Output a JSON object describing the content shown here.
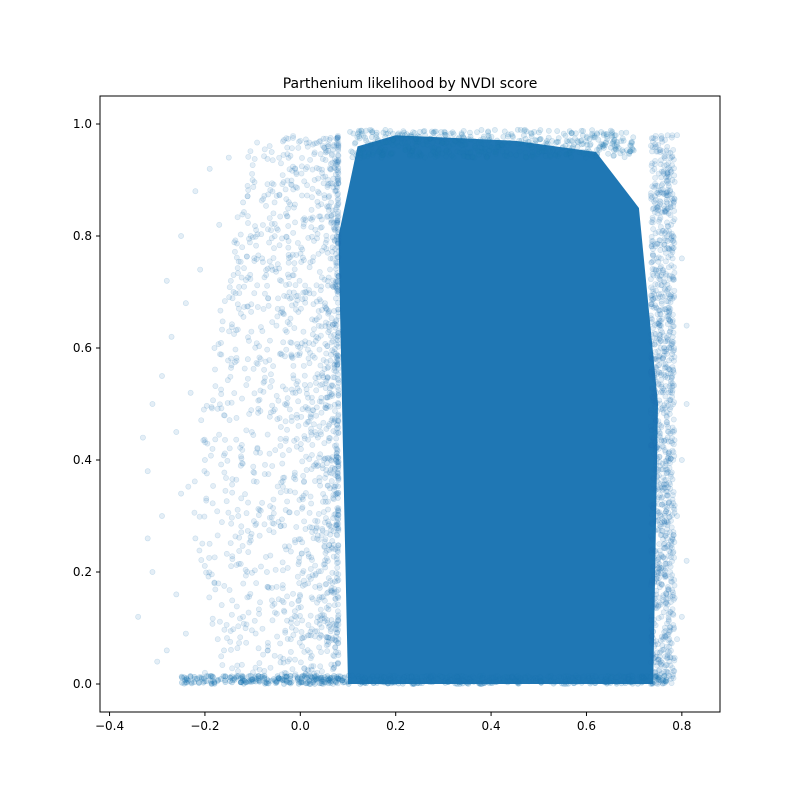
{
  "chart_data": {
    "type": "scatter",
    "title": "Parthenium likelihood by NVDI score",
    "xlabel": "",
    "ylabel": "",
    "xlim": [
      -0.42,
      0.88
    ],
    "ylim": [
      -0.05,
      1.05
    ],
    "xticks": [
      -0.4,
      -0.2,
      0.0,
      0.2,
      0.4,
      0.6,
      0.8
    ],
    "xtick_labels": [
      "−0.4",
      "−0.2",
      "0.0",
      "0.2",
      "0.4",
      "0.6",
      "0.8"
    ],
    "yticks": [
      0.0,
      0.2,
      0.4,
      0.6,
      0.8,
      1.0
    ],
    "ytick_labels": [
      "0.0",
      "0.2",
      "0.4",
      "0.6",
      "0.8",
      "1.0"
    ],
    "grid": false,
    "legend": "none",
    "marker_color": "#1f77b4",
    "marker_alpha": 0.12,
    "series": [
      {
        "dense_region": {
          "x_range": [
            0.08,
            0.75
          ],
          "y_range": [
            0.0,
            0.98
          ],
          "x_edge_spread": 0.05
        },
        "sparse_points": [
          [
            -0.34,
            0.12
          ],
          [
            -0.33,
            0.44
          ],
          [
            -0.32,
            0.38
          ],
          [
            -0.32,
            0.26
          ],
          [
            -0.31,
            0.5
          ],
          [
            -0.31,
            0.2
          ],
          [
            -0.3,
            0.04
          ],
          [
            -0.29,
            0.55
          ],
          [
            -0.29,
            0.3
          ],
          [
            -0.28,
            0.72
          ],
          [
            -0.28,
            0.06
          ],
          [
            -0.27,
            0.62
          ],
          [
            -0.26,
            0.45
          ],
          [
            -0.26,
            0.16
          ],
          [
            -0.25,
            0.8
          ],
          [
            -0.25,
            0.34
          ],
          [
            -0.24,
            0.68
          ],
          [
            -0.24,
            0.09
          ],
          [
            -0.23,
            0.52
          ],
          [
            -0.22,
            0.88
          ],
          [
            -0.22,
            0.26
          ],
          [
            -0.21,
            0.74
          ],
          [
            -0.2,
            0.4
          ],
          [
            -0.2,
            0.02
          ],
          [
            -0.19,
            0.92
          ],
          [
            -0.18,
            0.6
          ],
          [
            -0.18,
            0.18
          ],
          [
            -0.17,
            0.82
          ],
          [
            -0.16,
            0.48
          ],
          [
            -0.16,
            0.06
          ],
          [
            -0.15,
            0.94
          ],
          [
            -0.14,
            0.7
          ],
          [
            -0.13,
            0.3
          ],
          [
            -0.12,
            0.86
          ],
          [
            -0.12,
            0.12
          ],
          [
            -0.11,
            0.58
          ],
          [
            -0.1,
            0.9
          ],
          [
            -0.09,
            0.42
          ],
          [
            -0.08,
            0.76
          ],
          [
            -0.07,
            0.2
          ],
          [
            -0.06,
            0.95
          ],
          [
            -0.05,
            0.64
          ],
          [
            -0.04,
            0.36
          ],
          [
            -0.03,
            0.84
          ],
          [
            -0.02,
            0.08
          ],
          [
            -0.01,
            0.52
          ],
          [
            0.0,
            0.97
          ],
          [
            0.01,
            0.7
          ],
          [
            0.02,
            0.28
          ],
          [
            0.03,
            0.9
          ],
          [
            0.04,
            0.46
          ],
          [
            0.05,
            0.78
          ],
          [
            0.06,
            0.14
          ],
          [
            0.07,
            0.96
          ],
          [
            0.78,
            0.9
          ],
          [
            0.78,
            0.55
          ],
          [
            0.79,
            0.3
          ],
          [
            0.79,
            0.08
          ],
          [
            0.8,
            0.76
          ],
          [
            0.8,
            0.4
          ],
          [
            0.81,
            0.64
          ],
          [
            0.81,
            0.22
          ],
          [
            0.79,
            0.98
          ],
          [
            0.8,
            0.12
          ],
          [
            0.81,
            0.5
          ]
        ]
      }
    ]
  }
}
